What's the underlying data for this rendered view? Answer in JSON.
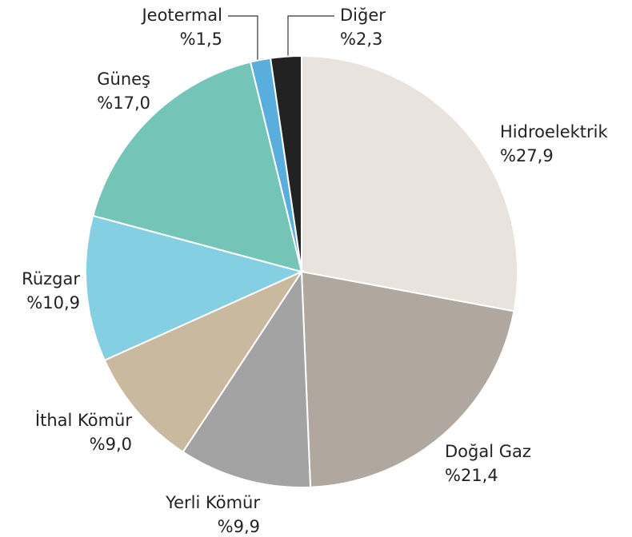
{
  "chart_data": {
    "type": "pie",
    "categories": [
      "Hidroelektrik",
      "Doğal Gaz",
      "Yerli Kömür",
      "İthal Kömür",
      "Rüzgar",
      "Güneş",
      "Jeotermal",
      "Diğer"
    ],
    "values": [
      27.9,
      21.4,
      9.9,
      9.0,
      10.9,
      17.0,
      1.5,
      2.3
    ],
    "value_labels": [
      "%27,9",
      "%21,4",
      "%9,9",
      "%9,0",
      "%10,9",
      "%17,0",
      "%1,5",
      "%2,3"
    ],
    "colors": [
      "#e8e3dc",
      "#b0a79e",
      "#a3a3a3",
      "#c8b99f",
      "#85cfe3",
      "#74c4b8",
      "#5aaede",
      "#222222"
    ]
  }
}
